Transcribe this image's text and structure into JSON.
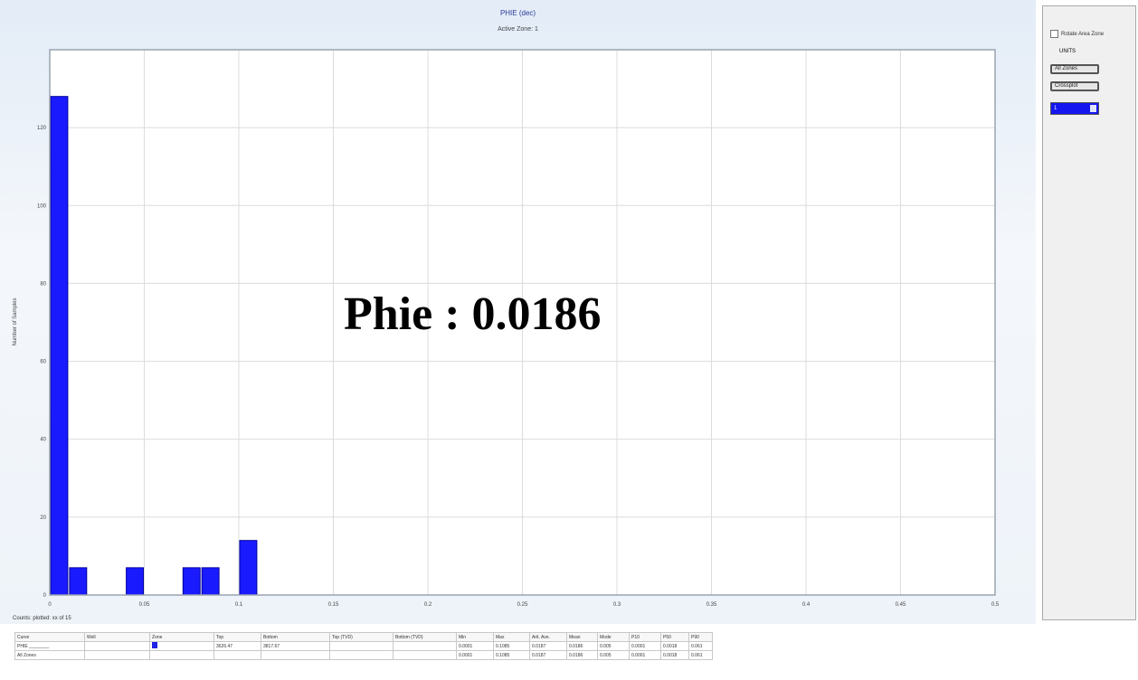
{
  "title": "PHIE (dec)",
  "subtitle": "Active Zone: 1",
  "overlay_label": "Phie  : 0.0186",
  "right_panel": {
    "checkbox_label": "Rotate Area Zone",
    "label": "UNITS",
    "button_1": "All Zones",
    "button_2": "Crossplot",
    "select_value": "1"
  },
  "count_line": "Counts: plotted: xx of 15",
  "table": {
    "headers": [
      "Curve",
      "Well",
      "Zone",
      "Top",
      "Bottom",
      "Top (TVD)",
      "Bottom (TVD)",
      "Min",
      "Max",
      "Arit. Ave.",
      "Mean",
      "Mode",
      "P10",
      "P50",
      "P90"
    ],
    "rows": [
      [
        "PHIE",
        "",
        "",
        "3626.47",
        "3817.67",
        "",
        "",
        "0.0001",
        "0.1085",
        "0.0187",
        "0.0186",
        "0.005",
        "0.0001",
        "0.0018",
        "0.061"
      ],
      [
        "All Zones",
        "",
        "",
        "",
        "",
        "",
        "",
        "0.0001",
        "0.1085",
        "0.0187",
        "0.0186",
        "0.005",
        "0.0001",
        "0.0018",
        "0.061"
      ]
    ]
  },
  "colors": {
    "bar": "#1a1aff",
    "bar_edge": "#00009a",
    "grid": "#dcdcdc",
    "swatch": "#2020e8"
  },
  "chart_data": {
    "type": "bar",
    "title": "PHIE (dec)",
    "subtitle": "Active Zone: 1",
    "xlabel": "",
    "ylabel": "Number of Samples",
    "xlim": [
      0,
      0.5
    ],
    "ylim": [
      0,
      140
    ],
    "x_ticks": [
      0,
      0.05,
      0.1,
      0.15,
      0.2,
      0.25,
      0.3,
      0.35,
      0.4,
      0.45,
      0.5
    ],
    "x_tick_labels": [
      "0",
      "0.05",
      "0.1",
      "0.15",
      "0.2",
      "0.25",
      "0.3",
      "0.35",
      "0.4",
      "0.45",
      "0.5"
    ],
    "y_ticks": [
      0,
      20,
      40,
      60,
      80,
      100,
      120
    ],
    "y_tick_labels": [
      "0",
      "20",
      "40",
      "60",
      "80",
      "100",
      "120"
    ],
    "bin_width": 0.01,
    "bins": [
      {
        "x": 0.0,
        "value": 128
      },
      {
        "x": 0.01,
        "value": 7
      },
      {
        "x": 0.04,
        "value": 7
      },
      {
        "x": 0.07,
        "value": 7
      },
      {
        "x": 0.08,
        "value": 7
      },
      {
        "x": 0.1,
        "value": 14
      }
    ],
    "grid": true
  }
}
